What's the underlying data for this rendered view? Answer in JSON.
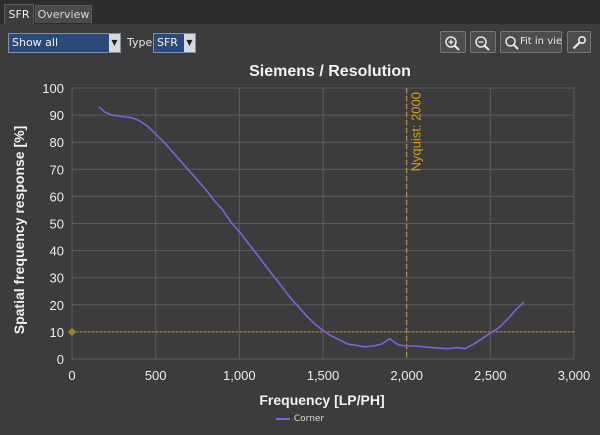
{
  "tabs": [
    {
      "label": "SFR",
      "active": true
    },
    {
      "label": "Overview",
      "active": false
    }
  ],
  "toolbar": {
    "view_select": "Show all",
    "type_label": "Type",
    "type_select": "SFR",
    "fit_label": "Fit in view",
    "zoom_in_icon": "zoom-in-icon",
    "zoom_out_icon": "zoom-out-icon",
    "fit_icon": "magnifier-icon",
    "settings_icon": "wrench-icon"
  },
  "colors": {
    "series": "#7864dc",
    "nyquist": "#d4a017",
    "grid": "#5c5c5c",
    "threshold": "#c88a2e",
    "marker": "#e0601a"
  },
  "chart_data": {
    "type": "line",
    "title": "Siemens / Resolution",
    "xlabel": "Frequency [LP/PH]",
    "ylabel": "Spatial frequency response [%]",
    "xlim": [
      0,
      3000
    ],
    "ylim": [
      0,
      100
    ],
    "x_ticks": [
      "0",
      "500",
      "1,000",
      "1,500",
      "2,000",
      "2,500",
      "3,000"
    ],
    "y_ticks": [
      "0",
      "10",
      "20",
      "30",
      "40",
      "50",
      "60",
      "70",
      "80",
      "90",
      "100"
    ],
    "grid": true,
    "legend_position": "bottom",
    "series": [
      {
        "name": "Corner",
        "x": [
          160,
          200,
          240,
          300,
          360,
          400,
          450,
          500,
          550,
          600,
          650,
          700,
          750,
          800,
          850,
          900,
          950,
          1000,
          1050,
          1100,
          1150,
          1200,
          1250,
          1300,
          1350,
          1400,
          1450,
          1500,
          1550,
          1600,
          1650,
          1700,
          1750,
          1800,
          1850,
          1900,
          1920,
          1950,
          2000,
          2050,
          2100,
          2150,
          2200,
          2250,
          2300,
          2350,
          2400,
          2450,
          2500,
          2550,
          2600,
          2650,
          2700
        ],
        "y": [
          93,
          91,
          90,
          89.5,
          89,
          88,
          86,
          83,
          80,
          76.5,
          73,
          69.5,
          66,
          62.5,
          58.5,
          55,
          50.5,
          47,
          43,
          39,
          35,
          31,
          27,
          23,
          19.5,
          16,
          13,
          10.5,
          8.5,
          7,
          5.5,
          5,
          4.5,
          4.8,
          5.5,
          7.5,
          6.5,
          5.2,
          4.8,
          4.8,
          4.5,
          4.2,
          4,
          3.8,
          4.2,
          3.8,
          5.5,
          7.5,
          9.5,
          11.5,
          14.5,
          18,
          21
        ]
      }
    ],
    "annotations": [
      {
        "type": "vline",
        "x": 2000,
        "label": "Nyquist: 2000"
      },
      {
        "type": "hline",
        "y": 10
      },
      {
        "type": "point",
        "x": 0,
        "y": 10
      }
    ]
  }
}
